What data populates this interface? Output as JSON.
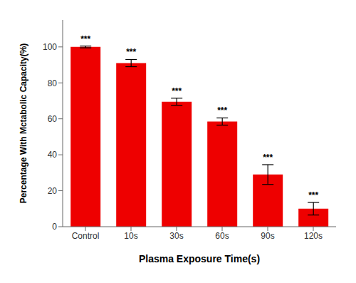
{
  "chart_data": {
    "type": "bar",
    "categories": [
      "Control",
      "10s",
      "30s",
      "60s",
      "90s",
      "120s"
    ],
    "values": [
      100.0,
      91.0,
      69.5,
      58.5,
      29.0,
      10.0
    ],
    "errors": [
      0.5,
      2.0,
      2.0,
      2.0,
      5.5,
      3.5
    ],
    "color": "#EE0000",
    "xlabel": "Plasma Exposure Time(s)",
    "ylabel": "Percentage With Mctabolic Capacity(%)",
    "ylim": [
      0,
      115
    ],
    "yticks": [
      0,
      20,
      40,
      60,
      80,
      100
    ],
    "annotations": [
      "***",
      "***",
      "***",
      "***",
      "***",
      "***"
    ],
    "grid": false
  }
}
